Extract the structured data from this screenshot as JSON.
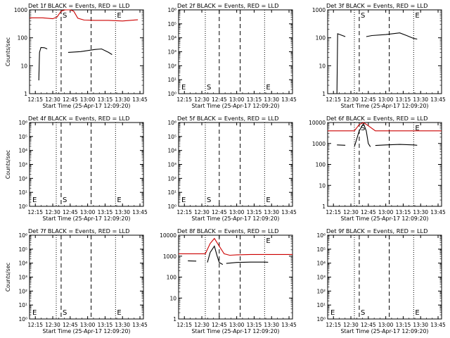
{
  "chart_data": [
    {
      "type": "line",
      "title": "Det 1f BLACK = Events, RED = LLD",
      "xlabel": "Start Time (25-Apr-17 12:09:20)",
      "ylabel": "Counts/sec",
      "xlim": [
        12.167,
        13.8
      ],
      "x_ticks": [
        12.25,
        12.5,
        12.75,
        13.0,
        13.25,
        13.5,
        13.75
      ],
      "x_tick_labels": [
        "12:15",
        "12:30",
        "12:45",
        "13:00",
        "13:15",
        "13:30",
        "13:45"
      ],
      "y_scale": "log",
      "ylim": [
        1,
        1000
      ],
      "y_ticks": [
        1,
        10,
        100,
        1000
      ],
      "y_tick_labels": [
        "1",
        "10",
        "100",
        "1000"
      ],
      "markers": [
        {
          "x": 12.55,
          "style": "dotted",
          "label": ""
        },
        {
          "x": 12.62,
          "style": "dashed",
          "label": "S"
        },
        {
          "x": 13.05,
          "style": "dashed",
          "label": ""
        },
        {
          "x": 13.4,
          "style": "dotted",
          "label": "E"
        }
      ],
      "series": [
        {
          "color": "#cc0000",
          "segments": [
            [
              [
                12.167,
                520
              ],
              [
                12.35,
                520
              ],
              [
                12.5,
                480
              ],
              [
                12.56,
                550
              ],
              [
                12.62,
                900
              ],
              [
                12.68,
                1200
              ],
              [
                12.75,
                1200
              ],
              [
                12.8,
                900
              ],
              [
                12.86,
                500
              ],
              [
                12.95,
                430
              ],
              [
                13.1,
                420
              ],
              [
                13.3,
                420
              ],
              [
                13.5,
                400
              ],
              [
                13.72,
                440
              ]
            ]
          ]
        },
        {
          "color": "#000000",
          "segments": [
            [
              [
                12.3,
                3
              ],
              [
                12.31,
                30
              ],
              [
                12.33,
                45
              ],
              [
                12.38,
                44
              ],
              [
                12.42,
                40
              ]
            ],
            [
              [
                12.72,
                30
              ],
              [
                12.9,
                32
              ],
              [
                13.1,
                38
              ],
              [
                13.2,
                40
              ],
              [
                13.3,
                30
              ],
              [
                13.35,
                25
              ]
            ]
          ]
        }
      ]
    },
    {
      "type": "line",
      "title": "Det 2f BLACK = Events, RED = LLD",
      "xlabel": "Start Time (25-Apr-17 12:09:20)",
      "ylabel": "",
      "xlim": [
        12.167,
        13.8
      ],
      "x_ticks": [
        12.25,
        12.5,
        12.75,
        13.0,
        13.25,
        13.5,
        13.75
      ],
      "x_tick_labels": [
        "12:15",
        "12:30",
        "12:45",
        "13:00",
        "13:15",
        "13:30",
        "13:45"
      ],
      "y_scale": "log",
      "ylim": [
        1,
        1000000
      ],
      "y_ticks": [
        1,
        10,
        100,
        1000,
        10000,
        100000,
        1000000
      ],
      "y_tick_labels": [
        "10⁰",
        "10¹",
        "10²",
        "10³",
        "10⁴",
        "10⁵",
        "10⁶"
      ],
      "markers": [
        {
          "x": 12.167,
          "style": "none",
          "label": "E"
        },
        {
          "x": 12.55,
          "style": "dotted",
          "label": "S"
        },
        {
          "x": 12.75,
          "style": "dashed",
          "label": ""
        },
        {
          "x": 13.05,
          "style": "dashed",
          "label": ""
        },
        {
          "x": 13.4,
          "style": "dotted",
          "label": "E"
        }
      ],
      "series": []
    },
    {
      "type": "line",
      "title": "Det 3f BLACK = Events, RED = LLD",
      "xlabel": "Start Time (25-Apr-17 12:09:20)",
      "ylabel": "",
      "xlim": [
        12.167,
        13.8
      ],
      "x_ticks": [
        12.25,
        12.5,
        12.75,
        13.0,
        13.25,
        13.5,
        13.75
      ],
      "x_tick_labels": [
        "12:15",
        "12:30",
        "12:45",
        "13:00",
        "13:15",
        "13:30",
        "13:45"
      ],
      "y_scale": "log",
      "ylim": [
        1,
        1000
      ],
      "y_ticks": [
        1,
        10,
        100,
        1000
      ],
      "y_tick_labels": [
        "1",
        "10",
        "100",
        "1000"
      ],
      "markers": [
        {
          "x": 12.55,
          "style": "dotted",
          "label": ""
        },
        {
          "x": 12.62,
          "style": "dashed",
          "label": "S"
        },
        {
          "x": 13.05,
          "style": "dashed",
          "label": ""
        },
        {
          "x": 13.4,
          "style": "dotted",
          "label": "E"
        }
      ],
      "series": [
        {
          "color": "#000000",
          "segments": [
            [
              [
                12.3,
                1
              ],
              [
                12.31,
                140
              ],
              [
                12.38,
                120
              ],
              [
                12.42,
                110
              ]
            ],
            [
              [
                12.72,
                110
              ],
              [
                12.8,
                120
              ],
              [
                13.0,
                130
              ],
              [
                13.2,
                150
              ],
              [
                13.3,
                120
              ],
              [
                13.4,
                95
              ],
              [
                13.45,
                90
              ]
            ]
          ]
        }
      ]
    },
    {
      "type": "line",
      "title": "Det 4f BLACK = Events, RED = LLD",
      "xlabel": "Start Time (25-Apr-17 12:09:20)",
      "ylabel": "Counts/sec",
      "xlim": [
        12.167,
        13.8
      ],
      "x_ticks": [
        12.25,
        12.5,
        12.75,
        13.0,
        13.25,
        13.5,
        13.75
      ],
      "x_tick_labels": [
        "12:15",
        "12:30",
        "12:45",
        "13:00",
        "13:15",
        "13:30",
        "13:45"
      ],
      "y_scale": "log",
      "ylim": [
        1,
        1000000
      ],
      "y_ticks": [
        1,
        10,
        100,
        1000,
        10000,
        100000,
        1000000
      ],
      "y_tick_labels": [
        "10⁰",
        "10¹",
        "10²",
        "10³",
        "10⁴",
        "10⁵",
        "10⁶"
      ],
      "markers": [
        {
          "x": 12.167,
          "style": "none",
          "label": "E"
        },
        {
          "x": 12.55,
          "style": "dotted",
          "label": ""
        },
        {
          "x": 12.62,
          "style": "dashed",
          "label": "S"
        },
        {
          "x": 13.05,
          "style": "dashed",
          "label": ""
        },
        {
          "x": 13.4,
          "style": "dotted",
          "label": "E"
        }
      ],
      "series": []
    },
    {
      "type": "line",
      "title": "Det 5f BLACK = Events, RED = LLD",
      "xlabel": "Start Time (25-Apr-17 12:09:20)",
      "ylabel": "",
      "xlim": [
        12.167,
        13.8
      ],
      "x_ticks": [
        12.25,
        12.5,
        12.75,
        13.0,
        13.25,
        13.5,
        13.75
      ],
      "x_tick_labels": [
        "12:15",
        "12:30",
        "12:45",
        "13:00",
        "13:15",
        "13:30",
        "13:45"
      ],
      "y_scale": "log",
      "ylim": [
        1,
        1000000
      ],
      "y_ticks": [
        1,
        10,
        100,
        1000,
        10000,
        100000,
        1000000
      ],
      "y_tick_labels": [
        "10⁰",
        "10¹",
        "10²",
        "10³",
        "10⁴",
        "10⁵",
        "10⁶"
      ],
      "markers": [
        {
          "x": 12.167,
          "style": "none",
          "label": "E"
        },
        {
          "x": 12.55,
          "style": "dotted",
          "label": "S"
        },
        {
          "x": 12.75,
          "style": "dashed",
          "label": ""
        },
        {
          "x": 13.05,
          "style": "dashed",
          "label": ""
        },
        {
          "x": 13.4,
          "style": "dotted",
          "label": "E"
        }
      ],
      "series": []
    },
    {
      "type": "line",
      "title": "Det 6f BLACK = Events, RED = LLD",
      "xlabel": "Start Time (25-Apr-17 12:09:20)",
      "ylabel": "",
      "xlim": [
        12.167,
        13.8
      ],
      "x_ticks": [
        12.25,
        12.5,
        12.75,
        13.0,
        13.25,
        13.5,
        13.75
      ],
      "x_tick_labels": [
        "12:15",
        "12:30",
        "12:45",
        "13:00",
        "13:15",
        "13:30",
        "13:45"
      ],
      "y_scale": "log",
      "ylim": [
        1,
        10000
      ],
      "y_ticks": [
        1,
        10,
        100,
        1000,
        10000
      ],
      "y_tick_labels": [
        "1",
        "10",
        "100",
        "1000",
        "10000"
      ],
      "markers": [
        {
          "x": 12.55,
          "style": "dotted",
          "label": ""
        },
        {
          "x": 12.62,
          "style": "dashed",
          "label": "S"
        },
        {
          "x": 13.05,
          "style": "dashed",
          "label": ""
        },
        {
          "x": 13.4,
          "style": "dotted",
          "label": "E"
        }
      ],
      "series": [
        {
          "color": "#cc0000",
          "segments": [
            [
              [
                12.167,
                4000
              ],
              [
                12.55,
                4000
              ],
              [
                12.62,
                8000
              ],
              [
                12.68,
                10000
              ],
              [
                12.75,
                7000
              ],
              [
                12.85,
                4000
              ],
              [
                13.2,
                4000
              ],
              [
                13.8,
                4000
              ]
            ]
          ]
        },
        {
          "color": "#000000",
          "segments": [
            [
              [
                12.3,
                850
              ],
              [
                12.42,
                820
              ]
            ],
            [
              [
                12.55,
                700
              ],
              [
                12.62,
                4000
              ],
              [
                12.68,
                9000
              ],
              [
                12.72,
                4000
              ],
              [
                12.75,
                1000
              ],
              [
                12.78,
                700
              ]
            ],
            [
              [
                12.85,
                800
              ],
              [
                13.0,
                850
              ],
              [
                13.2,
                900
              ],
              [
                13.4,
                850
              ],
              [
                13.45,
                820
              ]
            ]
          ]
        }
      ]
    },
    {
      "type": "line",
      "title": "Det 7f BLACK = Events, RED = LLD",
      "xlabel": "Start Time (25-Apr-17 12:09:20)",
      "ylabel": "Counts/sec",
      "xlim": [
        12.167,
        13.8
      ],
      "x_ticks": [
        12.25,
        12.5,
        12.75,
        13.0,
        13.25,
        13.5,
        13.75
      ],
      "x_tick_labels": [
        "12:15",
        "12:30",
        "12:45",
        "13:00",
        "13:15",
        "13:30",
        "13:45"
      ],
      "y_scale": "log",
      "ylim": [
        1,
        1000000
      ],
      "y_ticks": [
        1,
        10,
        100,
        1000,
        10000,
        100000,
        1000000
      ],
      "y_tick_labels": [
        "10⁰",
        "10¹",
        "10²",
        "10³",
        "10⁴",
        "10⁵",
        "10⁶"
      ],
      "markers": [
        {
          "x": 12.167,
          "style": "none",
          "label": "E"
        },
        {
          "x": 12.55,
          "style": "dotted",
          "label": ""
        },
        {
          "x": 12.62,
          "style": "dashed",
          "label": "S"
        },
        {
          "x": 13.05,
          "style": "dashed",
          "label": ""
        },
        {
          "x": 13.4,
          "style": "dotted",
          "label": "E"
        }
      ],
      "series": []
    },
    {
      "type": "line",
      "title": "Det 8f BLACK = Events, RED = LLD",
      "xlabel": "Start Time (25-Apr-17 12:09:20)",
      "ylabel": "",
      "xlim": [
        12.167,
        13.8
      ],
      "x_ticks": [
        12.25,
        12.5,
        12.75,
        13.0,
        13.25,
        13.5,
        13.75
      ],
      "x_tick_labels": [
        "12:15",
        "12:30",
        "12:45",
        "13:00",
        "13:15",
        "13:30",
        "13:45"
      ],
      "y_scale": "log",
      "ylim": [
        1,
        10000
      ],
      "y_ticks": [
        1,
        10,
        100,
        1000,
        10000
      ],
      "y_tick_labels": [
        "1",
        "10",
        "100",
        "1000",
        "10000"
      ],
      "markers": [
        {
          "x": 12.55,
          "style": "dotted",
          "label": ""
        },
        {
          "x": 12.75,
          "style": "dashed",
          "label": ""
        },
        {
          "x": 13.05,
          "style": "dashed",
          "label": ""
        },
        {
          "x": 13.4,
          "style": "dotted",
          "label": "E"
        }
      ],
      "series": [
        {
          "color": "#cc0000",
          "segments": [
            [
              [
                12.167,
                1300
              ],
              [
                12.55,
                1300
              ],
              [
                12.62,
                4000
              ],
              [
                12.68,
                7000
              ],
              [
                12.75,
                3000
              ],
              [
                12.82,
                1300
              ],
              [
                12.9,
                1100
              ],
              [
                13.0,
                1150
              ],
              [
                13.2,
                1200
              ],
              [
                13.8,
                1200
              ]
            ]
          ]
        },
        {
          "color": "#000000",
          "segments": [
            [
              [
                12.3,
                600
              ],
              [
                12.42,
                580
              ]
            ],
            [
              [
                12.58,
                500
              ],
              [
                12.62,
                1500
              ],
              [
                12.68,
                3000
              ],
              [
                12.72,
                1000
              ],
              [
                12.75,
                500
              ],
              [
                12.8,
                400
              ]
            ],
            [
              [
                12.85,
                450
              ],
              [
                13.0,
                500
              ],
              [
                13.2,
                520
              ],
              [
                13.4,
                520
              ],
              [
                13.45,
                510
              ]
            ]
          ]
        }
      ]
    },
    {
      "type": "line",
      "title": "Det 9f BLACK = Events, RED = LLD",
      "xlabel": "Start Time (25-Apr-17 12:09:20)",
      "ylabel": "",
      "xlim": [
        12.167,
        13.8
      ],
      "x_ticks": [
        12.25,
        12.5,
        12.75,
        13.0,
        13.25,
        13.5,
        13.75
      ],
      "x_tick_labels": [
        "12:15",
        "12:30",
        "12:45",
        "13:00",
        "13:15",
        "13:30",
        "13:45"
      ],
      "y_scale": "log",
      "ylim": [
        1,
        1000000
      ],
      "y_ticks": [
        1,
        10,
        100,
        1000,
        10000,
        100000,
        1000000
      ],
      "y_tick_labels": [
        "10⁰",
        "10¹",
        "10²",
        "10³",
        "10⁴",
        "10⁵",
        "10⁶"
      ],
      "markers": [
        {
          "x": 12.167,
          "style": "none",
          "label": "E"
        },
        {
          "x": 12.55,
          "style": "dotted",
          "label": ""
        },
        {
          "x": 12.62,
          "style": "dashed",
          "label": "S"
        },
        {
          "x": 13.05,
          "style": "dashed",
          "label": ""
        },
        {
          "x": 13.4,
          "style": "dotted",
          "label": "E"
        }
      ],
      "series": []
    }
  ]
}
